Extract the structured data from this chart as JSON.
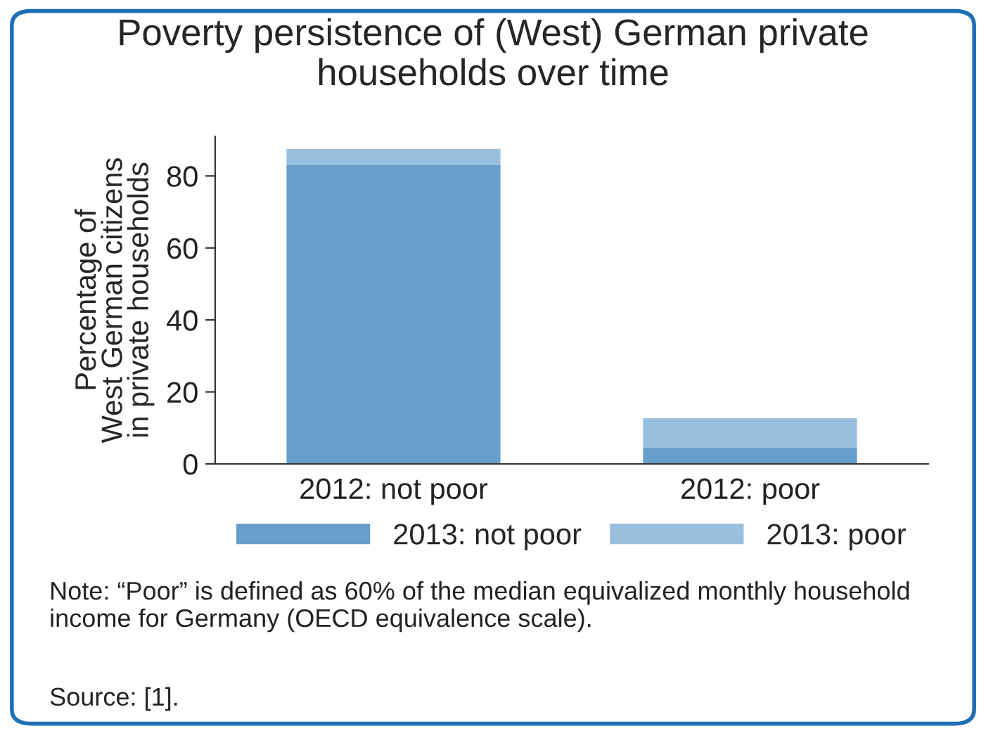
{
  "chart_data": {
    "type": "bar",
    "title": "Poverty persistence of (West) German private\nhouseholds over time",
    "ylabel": "Percentage of\nWest German citizens\nin private households",
    "categories": [
      "2012: not poor",
      "2012: poor"
    ],
    "stacked": true,
    "series": [
      {
        "name": "2013: not poor",
        "color": "#679ecb",
        "values": [
          83,
          4.5
        ]
      },
      {
        "name": "2013: poor",
        "color": "#98bfde",
        "values": [
          4.5,
          8.2
        ]
      }
    ],
    "ylim": [
      0,
      91
    ],
    "yticks": [
      0,
      20,
      40,
      60,
      80
    ],
    "grid": false,
    "legend": "bottom",
    "annotations": [
      "Note: “Poor” is defined as 60% of the median equivalized monthly household income for Germany (OECD equivalence scale).",
      "Source: [1]."
    ]
  }
}
